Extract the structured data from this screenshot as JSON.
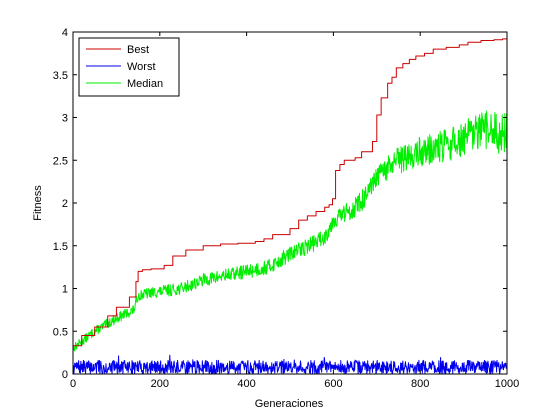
{
  "chart_data": {
    "type": "line",
    "xlabel": "Generaciones",
    "ylabel": "Fitness",
    "xlim": [
      0,
      1000
    ],
    "ylim": [
      0,
      4
    ],
    "xticks": [
      0,
      200,
      400,
      600,
      800,
      1000
    ],
    "yticks": [
      0,
      0.5,
      1,
      1.5,
      2,
      2.5,
      3,
      3.5,
      4
    ],
    "xtick_labels": [
      "0",
      "200",
      "400",
      "600",
      "800",
      "1000"
    ],
    "ytick_labels": [
      "0",
      "0.5",
      "1",
      "1.5",
      "2",
      "2.5",
      "3",
      "3.5",
      "4"
    ],
    "legend_position": "top-left",
    "grid": false,
    "series": [
      {
        "name": "Best",
        "color": "#cc0000",
        "style": "step",
        "x": [
          0,
          20,
          50,
          80,
          100,
          130,
          145,
          150,
          160,
          180,
          210,
          230,
          260,
          300,
          340,
          380,
          420,
          440,
          460,
          500,
          520,
          540,
          560,
          580,
          590,
          598,
          605,
          615,
          625,
          650,
          665,
          690,
          700,
          710,
          725,
          735,
          745,
          760,
          775,
          790,
          810,
          830,
          860,
          890,
          910,
          940,
          970,
          990,
          1000
        ],
        "y": [
          0.33,
          0.45,
          0.55,
          0.68,
          0.78,
          0.9,
          1.08,
          1.2,
          1.22,
          1.23,
          1.27,
          1.38,
          1.45,
          1.5,
          1.52,
          1.53,
          1.55,
          1.58,
          1.63,
          1.7,
          1.8,
          1.85,
          1.9,
          1.95,
          1.98,
          2.05,
          2.38,
          2.45,
          2.5,
          2.53,
          2.6,
          2.72,
          3.03,
          3.23,
          3.4,
          3.47,
          3.58,
          3.63,
          3.68,
          3.72,
          3.75,
          3.8,
          3.82,
          3.85,
          3.88,
          3.9,
          3.91,
          3.92,
          3.93
        ]
      },
      {
        "name": "Worst",
        "color": "#0000ee",
        "style": "noise",
        "base": 0.08,
        "amplitude": 0.16,
        "seed": 7
      },
      {
        "name": "Median",
        "color": "#00ee00",
        "style": "noise",
        "trend_x": [
          0,
          50,
          100,
          140,
          150,
          180,
          250,
          300,
          350,
          400,
          450,
          500,
          550,
          580,
          600,
          650,
          680,
          700,
          750,
          780,
          800,
          850,
          900,
          950,
          1000
        ],
        "trend_y": [
          0.3,
          0.5,
          0.65,
          0.75,
          0.92,
          0.95,
          1.0,
          1.1,
          1.15,
          1.2,
          1.25,
          1.4,
          1.52,
          1.6,
          1.8,
          1.95,
          2.1,
          2.3,
          2.5,
          2.55,
          2.6,
          2.65,
          2.75,
          2.85,
          2.8
        ],
        "noise_early": 0.05,
        "noise_late": 0.25,
        "seed": 13
      }
    ]
  }
}
